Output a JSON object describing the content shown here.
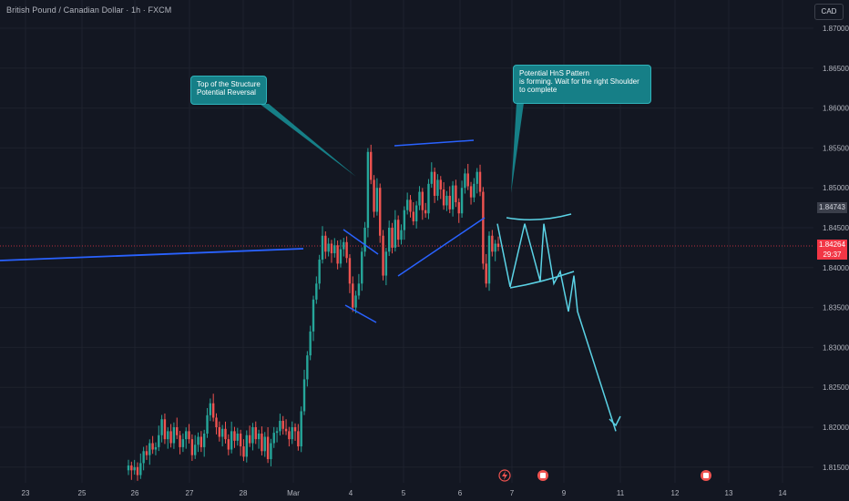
{
  "header": {
    "title": "British Pound / Canadian Dollar · 1h · FXCM",
    "currency_button": "CAD"
  },
  "annotations": {
    "top_structure": "Top of the Structure\nPotential Reversal",
    "hns": "Potential HnS Pattern\nis forming. Wait for the right Shoulder\nto complete"
  },
  "price_badges": {
    "current": {
      "price": "1.84264",
      "countdown": "29:37",
      "color": "#f23645"
    },
    "marker": {
      "price": "1.84743",
      "color": "#3a3e4a"
    }
  },
  "colors": {
    "background": "#131722",
    "up": "#26a69a",
    "down": "#ef5350",
    "trendline": "#2962ff",
    "projection": "#5bd3e6",
    "callout": "#167f87",
    "axis_text": "#b2b5be"
  },
  "event_icons": [
    "lightning-icon",
    "flag-icon",
    "flag-icon"
  ],
  "chart_data": {
    "type": "candlestick",
    "title": "British Pound / Canadian Dollar · 1h · FXCM",
    "y_axis": {
      "ticks": [
        "1.87000",
        "1.86500",
        "1.86000",
        "1.85500",
        "1.85000",
        "1.84500",
        "1.84000",
        "1.83500",
        "1.83000",
        "1.82500",
        "1.82000",
        "1.81500"
      ],
      "range": [
        1.8125,
        1.874
      ]
    },
    "x_axis": {
      "ticks": [
        "23",
        "25",
        "26",
        "27",
        "28",
        "Mar",
        "4",
        "5",
        "6",
        "7",
        "9",
        "11",
        "12",
        "13",
        "14"
      ]
    },
    "close_series": [
      1.8152,
      1.8146,
      1.815,
      1.814,
      1.8155,
      1.817,
      1.8165,
      1.818,
      1.8172,
      1.8175,
      1.819,
      1.821,
      1.8185,
      1.8195,
      1.818,
      1.82,
      1.819,
      1.8175,
      1.8185,
      1.8195,
      1.8185,
      1.8165,
      1.8178,
      1.8188,
      1.8175,
      1.8192,
      1.8215,
      1.823,
      1.8212,
      1.82,
      1.8188,
      1.8198,
      1.8185,
      1.8172,
      1.8195,
      1.8183,
      1.8192,
      1.8176,
      1.8163,
      1.819,
      1.818,
      1.82,
      1.8185,
      1.8192,
      1.817,
      1.8188,
      1.816,
      1.818,
      1.8193,
      1.8195,
      1.8208,
      1.8198,
      1.8195,
      1.8185,
      1.82,
      1.8195,
      1.8176,
      1.822,
      1.826,
      1.829,
      1.832,
      1.836,
      1.838,
      1.841,
      1.844,
      1.842,
      1.843,
      1.8418,
      1.8428,
      1.8405,
      1.8423,
      1.8432,
      1.8412,
      1.838,
      1.835,
      1.8365,
      1.838,
      1.842,
      1.845,
      1.8545,
      1.851,
      1.847,
      1.85,
      1.844,
      1.839,
      1.842,
      1.845,
      1.8425,
      1.846,
      1.8435,
      1.8447,
      1.8472,
      1.8485,
      1.847,
      1.8458,
      1.8478,
      1.8495,
      1.8472,
      1.8468,
      1.8505,
      1.852,
      1.849,
      1.851,
      1.8498,
      1.8478,
      1.849,
      1.8473,
      1.8503,
      1.8482,
      1.8468,
      1.85,
      1.8518,
      1.8502,
      1.8488,
      1.8505,
      1.852,
      1.8495,
      1.8405,
      1.838,
      1.844,
      1.842,
      1.843,
      1.8426
    ],
    "projection": [
      1.8455,
      1.8376,
      1.8455,
      1.8383,
      1.8455,
      1.838,
      1.8395,
      1.8345,
      1.839,
      1.8345,
      1.8195
    ],
    "current_price": 1.84264,
    "marked_price": 1.84743
  }
}
